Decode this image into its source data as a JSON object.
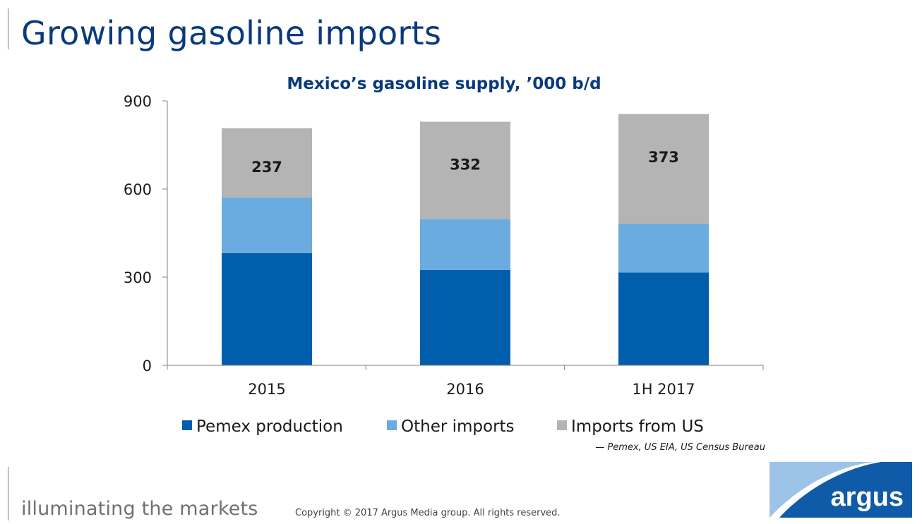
{
  "slide": {
    "title": "Growing gasoline imports",
    "source": "— Pemex, US EIA, US Census Bureau",
    "tagline": "illuminating the markets",
    "copyright": "Copyright © 2017 Argus Media group. All rights reserved.",
    "logo_text": "argus"
  },
  "colors": {
    "title": "#0a3a7c",
    "pemex": "#005eac",
    "other": "#6aace0",
    "us": "#b4b4b4",
    "logo_bg": "#0f5ba7"
  },
  "chart_data": {
    "type": "bar",
    "stacked": true,
    "title": "Mexico’s gasoline supply, ’000 b/d",
    "categories": [
      "2015",
      "2016",
      "1H 2017"
    ],
    "series": [
      {
        "name": "Pemex production",
        "values": [
          382,
          324,
          316
        ]
      },
      {
        "name": "Other imports",
        "values": [
          188,
          173,
          166
        ]
      },
      {
        "name": "Imports from US",
        "values": [
          237,
          332,
          373
        ]
      }
    ],
    "data_labels": [
      "237",
      "332",
      "373"
    ],
    "yticks": [
      "0",
      "300",
      "600",
      "900"
    ],
    "ylim": [
      0,
      900
    ],
    "grid": false,
    "legend_position": "bottom"
  }
}
